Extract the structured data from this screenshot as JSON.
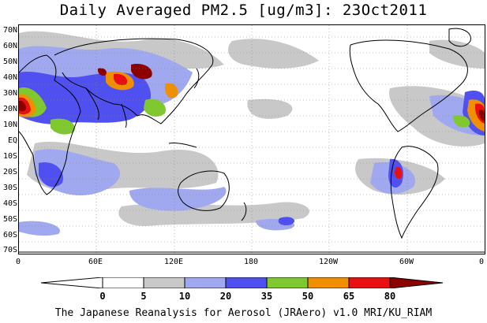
{
  "title": "Daily Averaged PM2.5 [ug/m3]: 23Oct2011",
  "footer": "The Japanese Reanalysis for Aerosol (JRAero) v1.0 MRI/KU_RIAM",
  "lat_labels": [
    "70N",
    "60N",
    "50N",
    "40N",
    "30N",
    "20N",
    "10N",
    "EQ",
    "10S",
    "20S",
    "30S",
    "40S",
    "50S",
    "60S",
    "70S"
  ],
  "lon_labels": [
    "0",
    "60E",
    "120E",
    "180",
    "120W",
    "60W",
    "0"
  ],
  "colorbar": {
    "levels": [
      "0",
      "5",
      "10",
      "20",
      "35",
      "50",
      "65",
      "80"
    ],
    "colors": [
      "#ffffff",
      "#c8c8c8",
      "#a0a8f0",
      "#5050f0",
      "#80c830",
      "#f09000",
      "#e81010",
      "#8c0000"
    ]
  },
  "colors": {
    "grey": "#c8c8c8",
    "lightblue": "#a0a8f0",
    "blue": "#5050f0",
    "green": "#80c830",
    "orange": "#f09000",
    "red": "#e81010",
    "darkred": "#8c0000"
  }
}
